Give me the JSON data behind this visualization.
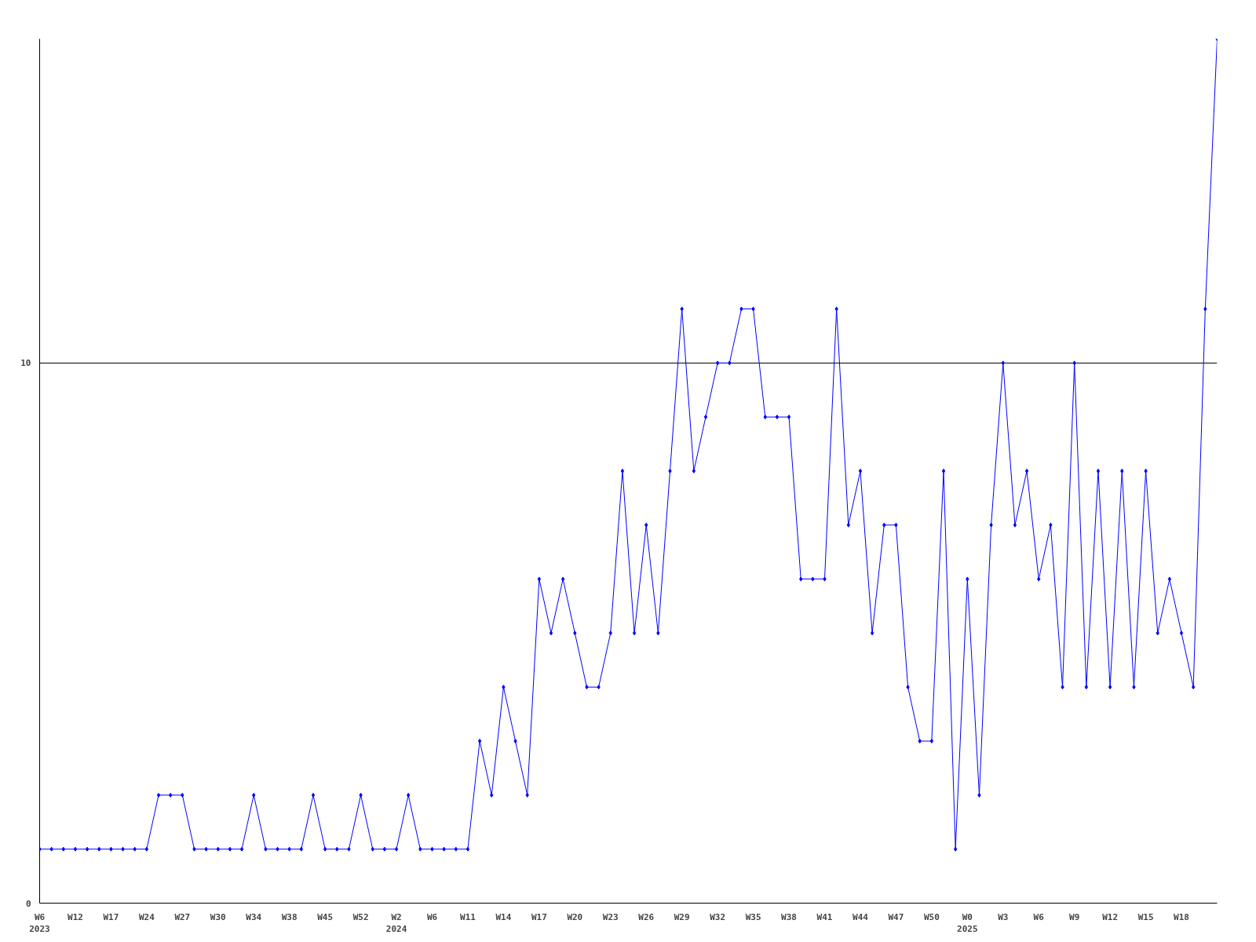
{
  "chart_data": {
    "type": "line",
    "categories": [
      "W6\n2023",
      null,
      null,
      "W12",
      null,
      null,
      "W17",
      null,
      null,
      "W24",
      null,
      null,
      "W27",
      null,
      null,
      "W30",
      null,
      null,
      "W34",
      null,
      null,
      "W38",
      null,
      null,
      "W45",
      null,
      null,
      "W52",
      null,
      null,
      "W2\n2024",
      null,
      null,
      "W6",
      null,
      null,
      "W11",
      null,
      null,
      "W14",
      null,
      null,
      "W17",
      null,
      null,
      "W20",
      null,
      null,
      "W23",
      null,
      null,
      "W26",
      null,
      null,
      "W29",
      null,
      null,
      "W32",
      null,
      null,
      "W35",
      null,
      null,
      "W38",
      null,
      null,
      "W41",
      null,
      null,
      "W44",
      null,
      null,
      "W47",
      null,
      null,
      "W50",
      null,
      null,
      "W0\n2025",
      null,
      null,
      "W3",
      null,
      null,
      "W6",
      null,
      null,
      "W9",
      null,
      null,
      "W12",
      null,
      null,
      "W15",
      null,
      null,
      "W18",
      null,
      null,
      null
    ],
    "series": [
      {
        "color": "#0000ff",
        "values": [
          1,
          1,
          1,
          1,
          1,
          1,
          1,
          1,
          1,
          1,
          2,
          2,
          2,
          1,
          1,
          1,
          1,
          1,
          2,
          1,
          1,
          1,
          1,
          2,
          1,
          1,
          1,
          2,
          1,
          1,
          1,
          2,
          1,
          1,
          1,
          1,
          1,
          3,
          2,
          4,
          3,
          2,
          6,
          5,
          6,
          5,
          4,
          4,
          5,
          8,
          5,
          7,
          5,
          8,
          11,
          8,
          9,
          10,
          10,
          11,
          11,
          9,
          9,
          9,
          6,
          6,
          6,
          11,
          7,
          8,
          5,
          7,
          7,
          4,
          3,
          3,
          8,
          1,
          6,
          2,
          7,
          10,
          7,
          8,
          6,
          7,
          4,
          10,
          4,
          8,
          4,
          8,
          4,
          8,
          5,
          6,
          5,
          4,
          11,
          16
        ]
      }
    ],
    "ylim": [
      0,
      16
    ],
    "yticks": [
      0,
      10
    ],
    "grid": "y",
    "marker": "diamond",
    "line_style": "solid"
  }
}
